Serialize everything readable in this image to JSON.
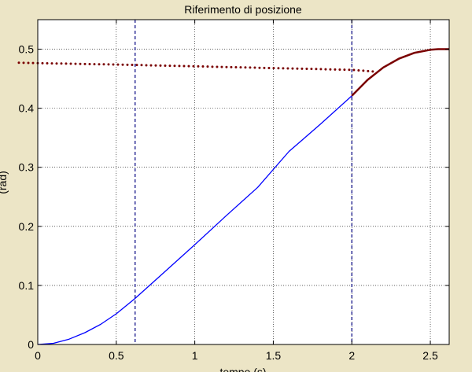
{
  "chart_data": {
    "type": "line",
    "title": "Riferimento di posizione",
    "xlabel": "tempo (s)",
    "ylabel": "(rad)",
    "xlim": [
      0,
      2.62
    ],
    "ylim": [
      0,
      0.55
    ],
    "xticks": [
      0,
      0.5,
      1,
      1.5,
      2,
      2.5
    ],
    "yticks": [
      0,
      0.1,
      0.2,
      0.3,
      0.4,
      0.5
    ],
    "xtick_labels": [
      "0",
      "0.5",
      "1",
      "1.5",
      "2",
      "2.5"
    ],
    "ytick_labels": [
      "0",
      "0.1",
      "0.2",
      "0.3",
      "0.4",
      "0.5"
    ],
    "grid": true,
    "vlines": [
      0.62,
      2.0
    ],
    "series": [
      {
        "color": "#0000ff",
        "style": "solid",
        "x": [
          0,
          0.1,
          0.2,
          0.3,
          0.4,
          0.5,
          0.62,
          0.8,
          1.0,
          1.2,
          1.4,
          1.6,
          1.8,
          2.0
        ],
        "y": [
          0,
          0.002,
          0.009,
          0.02,
          0.034,
          0.052,
          0.078,
          0.121,
          0.169,
          0.218,
          0.266,
          0.327,
          0.373,
          0.421
        ]
      },
      {
        "color": "#7a0000",
        "style": "solid",
        "x": [
          2.0,
          2.1,
          2.2,
          2.3,
          2.4,
          2.5,
          2.55,
          2.62
        ],
        "y": [
          0.421,
          0.448,
          0.469,
          0.484,
          0.494,
          0.499,
          0.5,
          0.5
        ]
      },
      {
        "color": "#7a0000",
        "style": "dotted",
        "x": [
          -0.12,
          0.5,
          1.0,
          1.5,
          2.0,
          2.15
        ],
        "y": [
          0.477,
          0.474,
          0.471,
          0.468,
          0.465,
          0.462
        ]
      }
    ]
  }
}
